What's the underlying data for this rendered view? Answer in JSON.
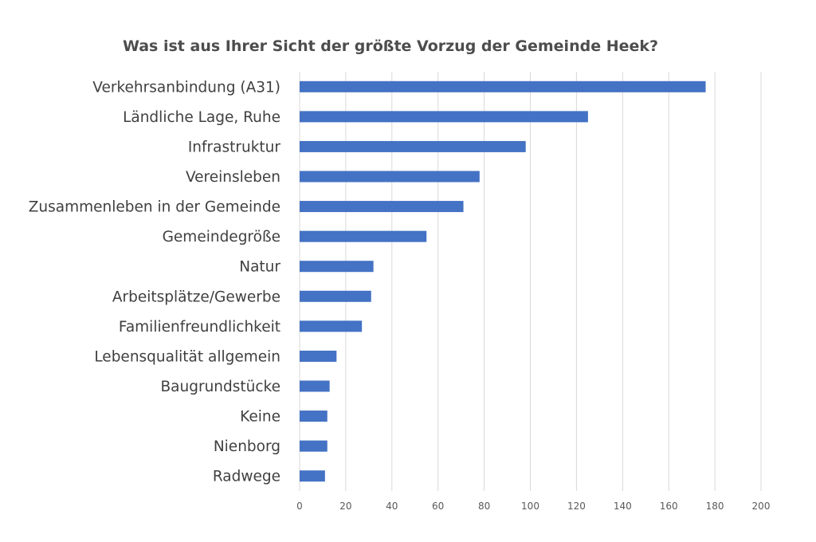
{
  "chart_data": {
    "type": "bar",
    "orientation": "horizontal",
    "title": "Was ist aus Ihrer Sicht der größte Vorzug der Gemeinde Heek?",
    "categories": [
      "Verkehrsanbindung (A31)",
      "Ländliche Lage, Ruhe",
      "Infrastruktur",
      "Vereinsleben",
      "Zusammenleben in der Gemeinde",
      "Gemeindegröße",
      "Natur",
      "Arbeitsplätze/Gewerbe",
      "Familienfreundlichkeit",
      "Lebensqualität allgemein",
      "Baugrundstücke",
      "Keine",
      "Nienborg",
      "Radwege"
    ],
    "values": [
      176,
      125,
      98,
      78,
      71,
      55,
      32,
      31,
      27,
      16,
      13,
      12,
      12,
      11
    ],
    "xlim": [
      0,
      200
    ],
    "xticks": [
      "0",
      "20",
      "40",
      "60",
      "80",
      "100",
      "120",
      "140",
      "160",
      "180",
      "200"
    ],
    "xlabel": "",
    "ylabel": "",
    "grid": "vertical",
    "legend": "none",
    "bar_color": "#4472c4"
  }
}
